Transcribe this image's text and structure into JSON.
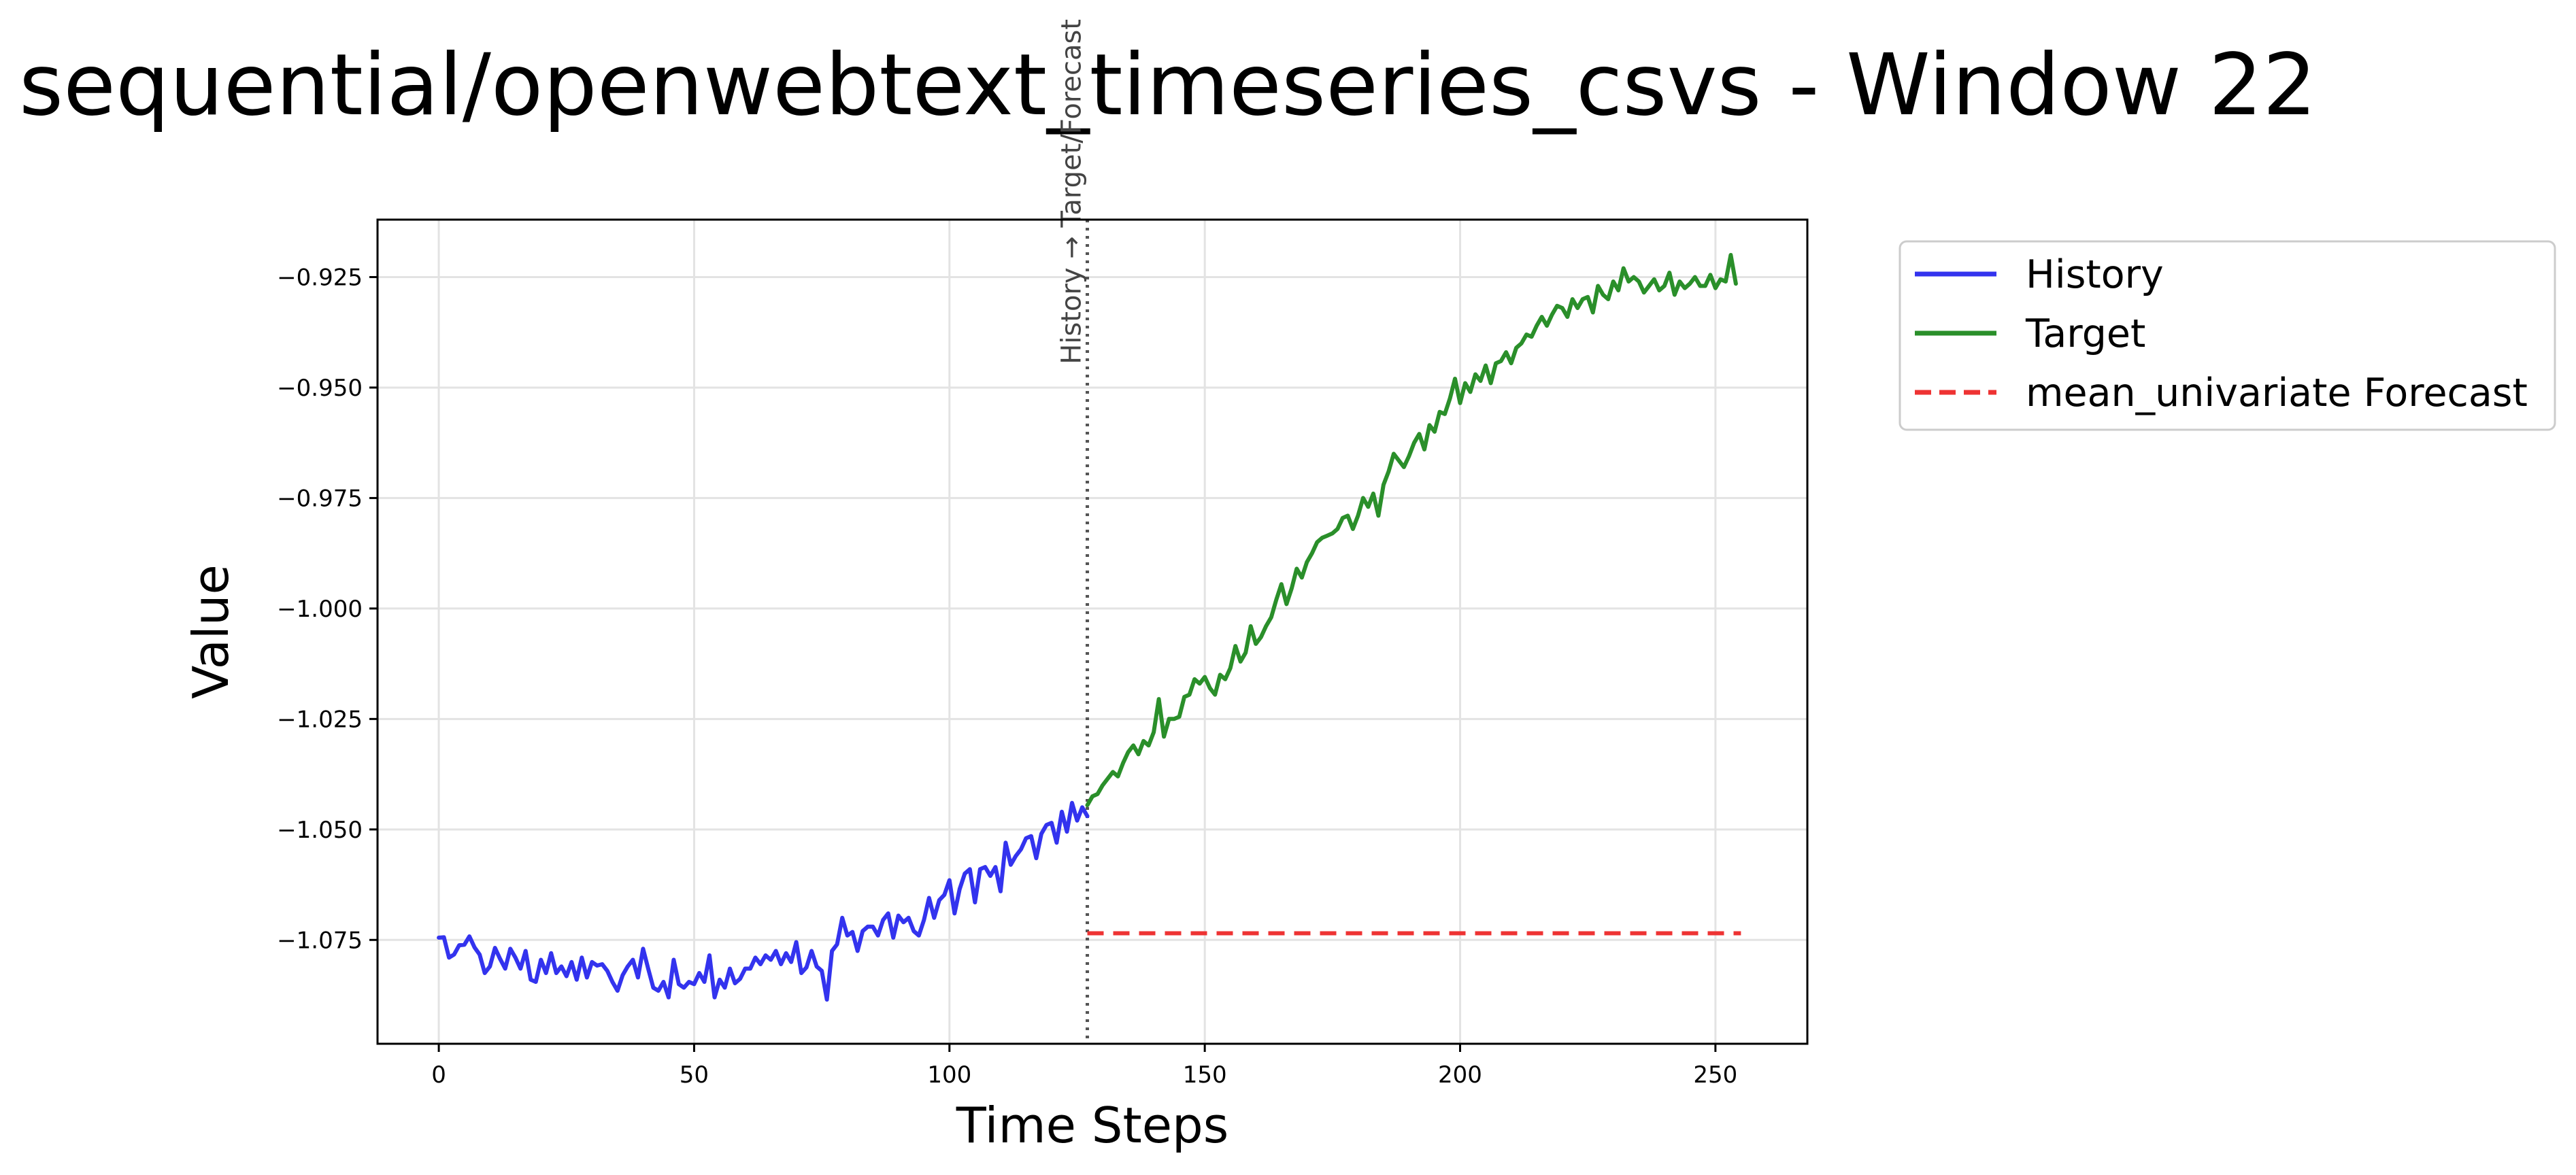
{
  "chart_data": {
    "type": "line",
    "title": "sequential/openwebtext_timeseries_csvs - Window 22",
    "xlabel": "Time Steps",
    "ylabel": "Value",
    "xlim": [
      -12,
      268
    ],
    "ylim": [
      -1.0985,
      -0.912
    ],
    "x_ticks": [
      0,
      50,
      100,
      150,
      200,
      250
    ],
    "y_ticks": [
      -1.075,
      -1.05,
      -1.025,
      -1.0,
      -0.975,
      -0.95,
      -0.925
    ],
    "x_tick_labels": [
      "0",
      "50",
      "100",
      "150",
      "200",
      "250"
    ],
    "y_tick_labels": [
      "−1.075",
      "−1.050",
      "−1.025",
      "−1.000",
      "−0.975",
      "−0.950",
      "−0.925"
    ],
    "grid": true,
    "legend_position": "outside-right-top",
    "split_marker": {
      "x": 127,
      "label": "History → Target/Forecast",
      "color": "#555555"
    },
    "series": [
      {
        "name": "History",
        "color": "#3333ee",
        "dash": "solid",
        "x_start": 0,
        "values": [
          -1.0745,
          -1.0744,
          -1.079,
          -1.0783,
          -1.0762,
          -1.0761,
          -1.0742,
          -1.0767,
          -1.0783,
          -1.0825,
          -1.081,
          -1.0768,
          -1.0793,
          -1.0815,
          -1.077,
          -1.079,
          -1.0815,
          -1.0775,
          -1.084,
          -1.0845,
          -1.0795,
          -1.0825,
          -1.078,
          -1.0825,
          -1.081,
          -1.0832,
          -1.08,
          -1.084,
          -1.079,
          -1.0835,
          -1.08,
          -1.0808,
          -1.0805,
          -1.082,
          -1.0845,
          -1.0865,
          -1.083,
          -1.081,
          -1.0795,
          -1.0835,
          -1.077,
          -1.0815,
          -1.0858,
          -1.0865,
          -1.0845,
          -1.088,
          -1.0795,
          -1.085,
          -1.0858,
          -1.0845,
          -1.085,
          -1.0825,
          -1.0845,
          -1.0785,
          -1.088,
          -1.084,
          -1.0858,
          -1.0815,
          -1.0848,
          -1.0838,
          -1.0815,
          -1.0815,
          -1.079,
          -1.0805,
          -1.0785,
          -1.0795,
          -1.0775,
          -1.0805,
          -1.078,
          -1.08,
          -1.0755,
          -1.0825,
          -1.0812,
          -1.0775,
          -1.081,
          -1.082,
          -1.0885,
          -1.0775,
          -1.076,
          -1.07,
          -1.074,
          -1.0732,
          -1.0775,
          -1.073,
          -1.072,
          -1.072,
          -1.074,
          -1.0705,
          -1.069,
          -1.0745,
          -1.0695,
          -1.071,
          -1.07,
          -1.073,
          -1.074,
          -1.0705,
          -1.0655,
          -1.07,
          -1.066,
          -1.0648,
          -1.0615,
          -1.069,
          -1.0635,
          -1.06,
          -1.059,
          -1.0665,
          -1.059,
          -1.0585,
          -1.0605,
          -1.0585,
          -1.064,
          -1.053,
          -1.058,
          -1.056,
          -1.0545,
          -1.052,
          -1.0515,
          -1.0565,
          -1.051,
          -1.049,
          -1.0485,
          -1.053,
          -1.046,
          -1.0505,
          -1.044,
          -1.048,
          -1.045,
          -1.047
        ]
      },
      {
        "name": "Target",
        "color": "#2a8f2a",
        "dash": "solid",
        "x_start": 127,
        "values": [
          -1.0445,
          -1.0425,
          -1.042,
          -1.04,
          -1.0385,
          -1.037,
          -1.038,
          -1.035,
          -1.0325,
          -1.031,
          -1.033,
          -1.03,
          -1.031,
          -1.028,
          -1.0205,
          -1.029,
          -1.025,
          -1.025,
          -1.0245,
          -1.02,
          -1.0195,
          -1.016,
          -1.017,
          -1.0155,
          -1.018,
          -1.0195,
          -1.015,
          -1.016,
          -1.0135,
          -1.0085,
          -1.012,
          -1.01,
          -1.004,
          -1.008,
          -1.0065,
          -1.004,
          -1.002,
          -0.998,
          -0.9945,
          -0.999,
          -0.9955,
          -0.991,
          -0.993,
          -0.9895,
          -0.9875,
          -0.985,
          -0.984,
          -0.9835,
          -0.983,
          -0.982,
          -0.9795,
          -0.979,
          -0.982,
          -0.979,
          -0.975,
          -0.977,
          -0.974,
          -0.979,
          -0.972,
          -0.969,
          -0.965,
          -0.9665,
          -0.968,
          -0.9655,
          -0.9625,
          -0.9605,
          -0.964,
          -0.9585,
          -0.96,
          -0.9555,
          -0.956,
          -0.9525,
          -0.948,
          -0.9535,
          -0.949,
          -0.951,
          -0.947,
          -0.9485,
          -0.945,
          -0.949,
          -0.9445,
          -0.944,
          -0.942,
          -0.9445,
          -0.941,
          -0.94,
          -0.938,
          -0.9385,
          -0.936,
          -0.934,
          -0.936,
          -0.9335,
          -0.9315,
          -0.932,
          -0.934,
          -0.93,
          -0.932,
          -0.93,
          -0.9295,
          -0.933,
          -0.927,
          -0.929,
          -0.93,
          -0.926,
          -0.928,
          -0.923,
          -0.926,
          -0.925,
          -0.926,
          -0.9285,
          -0.927,
          -0.9255,
          -0.928,
          -0.927,
          -0.924,
          -0.929,
          -0.926,
          -0.9275,
          -0.9265,
          -0.925,
          -0.927,
          -0.927,
          -0.9245,
          -0.9275,
          -0.9255,
          -0.926,
          -0.92,
          -0.9265
        ]
      },
      {
        "name": "mean_univariate Forecast",
        "color": "#ee3333",
        "dash": "dashed",
        "x": [
          127,
          255
        ],
        "values": [
          -1.0735,
          -1.0735
        ]
      }
    ]
  }
}
